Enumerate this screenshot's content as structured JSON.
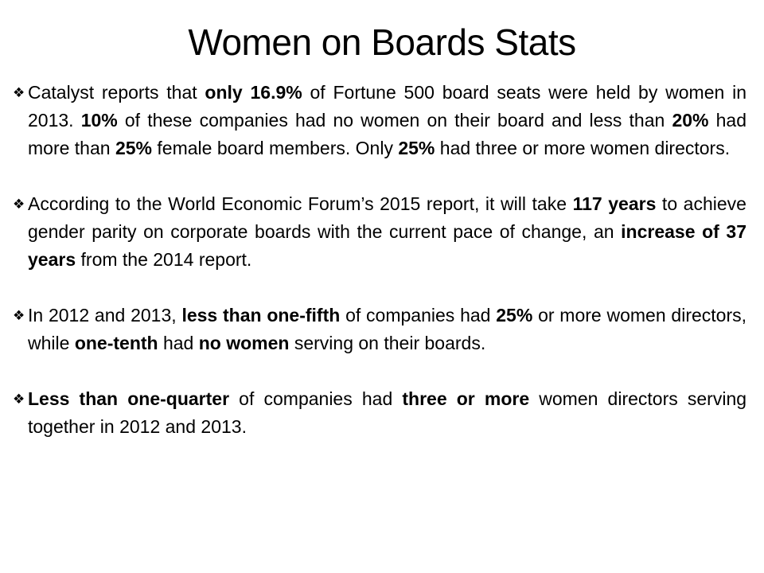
{
  "slide": {
    "title": "Women on Boards Stats",
    "bullet_icon": "diamond-four-petal-icon",
    "bullets": [
      {
        "segments": [
          {
            "text": "Catalyst reports that ",
            "bold": false
          },
          {
            "text": "only 16.9%",
            "bold": true
          },
          {
            "text": " of Fortune 500 board seats were held by women in 2013. ",
            "bold": false
          },
          {
            "text": "10%",
            "bold": true
          },
          {
            "text": " of these companies had no women on their board and less than ",
            "bold": false
          },
          {
            "text": "20%",
            "bold": true
          },
          {
            "text": " had more than ",
            "bold": false
          },
          {
            "text": "25%",
            "bold": true
          },
          {
            "text": " female board members. Only ",
            "bold": false
          },
          {
            "text": "25%",
            "bold": true
          },
          {
            "text": " had three or more women directors.",
            "bold": false
          }
        ]
      },
      {
        "segments": [
          {
            "text": "According to the World Economic Forum’s 2015 report, it will take ",
            "bold": false
          },
          {
            "text": "117 years",
            "bold": true
          },
          {
            "text": " to achieve gender parity on corporate boards with the current pace of change, an ",
            "bold": false
          },
          {
            "text": "increase of 37 years",
            "bold": true
          },
          {
            "text": " from the 2014 report.",
            "bold": false
          }
        ]
      },
      {
        "segments": [
          {
            "text": "In 2012 and 2013, ",
            "bold": false
          },
          {
            "text": "less than one-fifth",
            "bold": true
          },
          {
            "text": " of companies had ",
            "bold": false
          },
          {
            "text": "25%",
            "bold": true
          },
          {
            "text": " or more women directors, while ",
            "bold": false
          },
          {
            "text": "one-tenth",
            "bold": true
          },
          {
            "text": " had ",
            "bold": false
          },
          {
            "text": "no women",
            "bold": true
          },
          {
            "text": " serving on their boards.",
            "bold": false
          }
        ]
      },
      {
        "segments": [
          {
            "text": "Less than one-quarter",
            "bold": true
          },
          {
            "text": " of companies had ",
            "bold": false
          },
          {
            "text": "three or more",
            "bold": true
          },
          {
            "text": " women directors serving together in 2012 and 2013.",
            "bold": false
          }
        ]
      }
    ]
  }
}
